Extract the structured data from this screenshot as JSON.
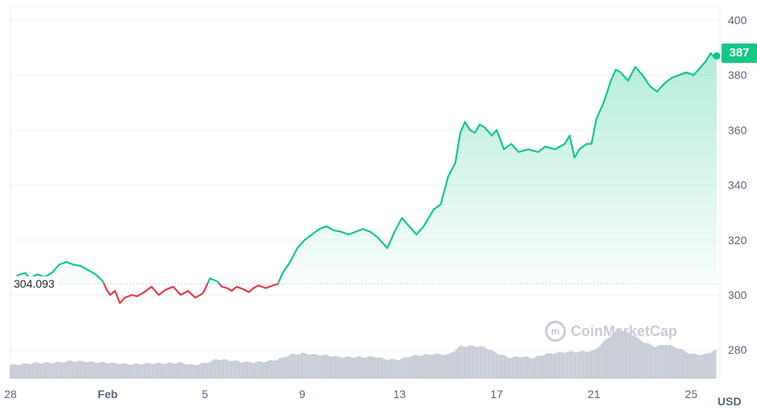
{
  "chart_data": {
    "type": "line",
    "currency": "USD",
    "current_price_label": "387",
    "reference_label": "304.093",
    "reference_value": 304.093,
    "watermark": "CoinMarketCap",
    "y_ticks": [
      "400",
      "380",
      "360",
      "340",
      "320",
      "300",
      "280"
    ],
    "ylim": [
      269.5,
      405
    ],
    "x_ticks": [
      {
        "label": "28",
        "bold": false
      },
      {
        "label": "Feb",
        "bold": true
      },
      {
        "label": "5",
        "bold": false
      },
      {
        "label": "9",
        "bold": false
      },
      {
        "label": "13",
        "bold": false
      },
      {
        "label": "17",
        "bold": false
      },
      {
        "label": "21",
        "bold": false
      },
      {
        "label": "25",
        "bold": false
      }
    ],
    "x_tick_days": [
      0,
      4,
      8,
      12,
      16,
      20,
      24,
      28
    ],
    "xlim": [
      0,
      29.05
    ],
    "grid": true,
    "up_color": "#16c784",
    "down_color": "#ea3943",
    "volume_color": "#c7ccd6",
    "price_series": [
      [
        0.25,
        307
      ],
      [
        0.6,
        308
      ],
      [
        0.8,
        306
      ],
      [
        1.1,
        307.5
      ],
      [
        1.4,
        306.5
      ],
      [
        1.7,
        308
      ],
      [
        2.0,
        311
      ],
      [
        2.3,
        312
      ],
      [
        2.6,
        311
      ],
      [
        2.9,
        310.5
      ],
      [
        3.2,
        309
      ],
      [
        3.5,
        307.5
      ],
      [
        3.8,
        305
      ],
      [
        3.95,
        302
      ],
      [
        4.1,
        300
      ],
      [
        4.3,
        301.5
      ],
      [
        4.5,
        297
      ],
      [
        4.7,
        299
      ],
      [
        5.0,
        300
      ],
      [
        5.2,
        299.5
      ],
      [
        5.5,
        301
      ],
      [
        5.8,
        303
      ],
      [
        6.1,
        300
      ],
      [
        6.4,
        302
      ],
      [
        6.7,
        303
      ],
      [
        7.0,
        300
      ],
      [
        7.3,
        301.5
      ],
      [
        7.6,
        299
      ],
      [
        7.9,
        300.5
      ],
      [
        8.0,
        302
      ],
      [
        8.2,
        306
      ],
      [
        8.5,
        305
      ],
      [
        8.7,
        303
      ],
      [
        8.9,
        302.5
      ],
      [
        9.1,
        301.5
      ],
      [
        9.3,
        303
      ],
      [
        9.6,
        302
      ],
      [
        9.8,
        301
      ],
      [
        10.0,
        302.5
      ],
      [
        10.2,
        303.5
      ],
      [
        10.5,
        302.5
      ],
      [
        10.8,
        303.5
      ],
      [
        11.0,
        304
      ],
      [
        11.2,
        308
      ],
      [
        11.5,
        312
      ],
      [
        11.8,
        317
      ],
      [
        12.1,
        320
      ],
      [
        12.4,
        322
      ],
      [
        12.7,
        324
      ],
      [
        13.0,
        325
      ],
      [
        13.3,
        323.5
      ],
      [
        13.6,
        323
      ],
      [
        13.9,
        322
      ],
      [
        14.2,
        323
      ],
      [
        14.5,
        324
      ],
      [
        14.8,
        323
      ],
      [
        15.1,
        321
      ],
      [
        15.5,
        317
      ],
      [
        15.8,
        323
      ],
      [
        16.1,
        328
      ],
      [
        16.4,
        325
      ],
      [
        16.7,
        322
      ],
      [
        17.0,
        325
      ],
      [
        17.4,
        331
      ],
      [
        17.7,
        333
      ],
      [
        18.0,
        343
      ],
      [
        18.3,
        348
      ],
      [
        18.5,
        359
      ],
      [
        18.7,
        363
      ],
      [
        18.9,
        360
      ],
      [
        19.1,
        359
      ],
      [
        19.3,
        362
      ],
      [
        19.5,
        361
      ],
      [
        19.8,
        358
      ],
      [
        20.0,
        360
      ],
      [
        20.3,
        353
      ],
      [
        20.6,
        355
      ],
      [
        20.9,
        352
      ],
      [
        21.3,
        353
      ],
      [
        21.7,
        352
      ],
      [
        22.0,
        354
      ],
      [
        22.4,
        353
      ],
      [
        22.8,
        355
      ],
      [
        23.0,
        358
      ],
      [
        23.2,
        350
      ],
      [
        23.4,
        353
      ],
      [
        23.7,
        355
      ],
      [
        23.9,
        355
      ],
      [
        24.1,
        364
      ],
      [
        24.4,
        370
      ],
      [
        24.7,
        378
      ],
      [
        24.9,
        382
      ],
      [
        25.1,
        381
      ],
      [
        25.4,
        378
      ],
      [
        25.7,
        383
      ],
      [
        26.0,
        380
      ],
      [
        26.3,
        376
      ],
      [
        26.6,
        374
      ],
      [
        26.9,
        377
      ],
      [
        27.2,
        379
      ],
      [
        27.5,
        380
      ],
      [
        27.8,
        381
      ],
      [
        28.1,
        380
      ],
      [
        28.4,
        383
      ],
      [
        28.6,
        385
      ],
      [
        28.8,
        388
      ],
      [
        29.0,
        386
      ],
      [
        29.05,
        387
      ]
    ],
    "volume_series": [
      [
        0,
        274.5
      ],
      [
        0.5,
        274.8
      ],
      [
        1,
        275.3
      ],
      [
        1.5,
        275.3
      ],
      [
        2,
        275.5
      ],
      [
        2.5,
        276
      ],
      [
        3,
        275.8
      ],
      [
        3.5,
        275.5
      ],
      [
        4,
        275.3
      ],
      [
        4.5,
        275
      ],
      [
        5,
        274.8
      ],
      [
        5.5,
        275
      ],
      [
        6,
        275.1
      ],
      [
        6.5,
        275.2
      ],
      [
        7,
        275.3
      ],
      [
        7.5,
        274.5
      ],
      [
        8,
        275.2
      ],
      [
        8.5,
        276.6
      ],
      [
        9,
        276.2
      ],
      [
        9.5,
        275.7
      ],
      [
        10,
        275.5
      ],
      [
        10.5,
        275.8
      ],
      [
        11,
        276.5
      ],
      [
        11.5,
        278.2
      ],
      [
        12,
        278.8
      ],
      [
        12.5,
        278.3
      ],
      [
        13,
        278
      ],
      [
        13.5,
        277.5
      ],
      [
        14,
        277.4
      ],
      [
        14.5,
        277.4
      ],
      [
        15,
        277.5
      ],
      [
        15.5,
        276.5
      ],
      [
        16,
        276.5
      ],
      [
        16.5,
        277.8
      ],
      [
        17,
        278.2
      ],
      [
        17.5,
        278.5
      ],
      [
        18,
        278.2
      ],
      [
        18.5,
        281.3
      ],
      [
        19,
        281.5
      ],
      [
        19.5,
        281
      ],
      [
        20,
        278.8
      ],
      [
        20.5,
        277.2
      ],
      [
        21,
        277.6
      ],
      [
        21.5,
        277.1
      ],
      [
        22,
        278.5
      ],
      [
        22.5,
        279
      ],
      [
        23,
        279.3
      ],
      [
        23.5,
        279.4
      ],
      [
        24,
        279.7
      ],
      [
        24.5,
        283.8
      ],
      [
        25,
        287.5
      ],
      [
        25.5,
        286
      ],
      [
        26,
        283
      ],
      [
        26.5,
        281.2
      ],
      [
        27,
        282
      ],
      [
        27.5,
        280.5
      ],
      [
        28,
        278.5
      ],
      [
        28.5,
        278.2
      ],
      [
        29.05,
        280
      ]
    ]
  }
}
